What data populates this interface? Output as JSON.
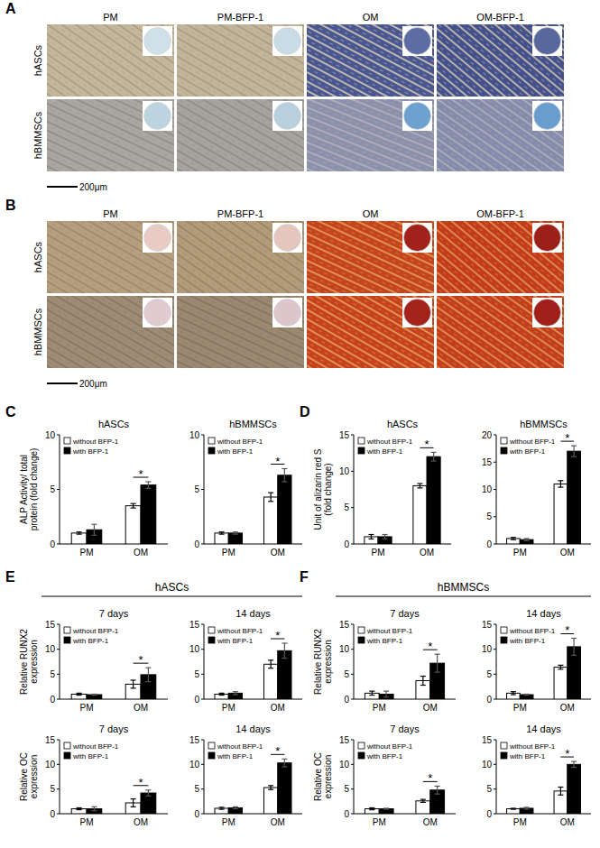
{
  "image_panels": [
    {
      "label": "A",
      "columns": [
        "PM",
        "PM-BFP-1",
        "OM",
        "OM-BFP-1"
      ],
      "rows": [
        "hASCs",
        "hBMMSCs"
      ],
      "scale_bar": "200μm"
    },
    {
      "label": "B",
      "columns": [
        "PM",
        "PM-BFP-1",
        "OM",
        "OM-BFP-1"
      ],
      "rows": [
        "hASCs",
        "hBMMSCs"
      ],
      "scale_bar": "200μm"
    }
  ],
  "chart_data": [
    {
      "type": "bar",
      "panel": "C",
      "title": "hASCs",
      "ylabel": "ALP Activity/ total protein (fold change)",
      "categories": [
        "PM",
        "OM"
      ],
      "series": [
        {
          "name": "without BFP-1",
          "color": "#ffffff",
          "values": [
            1.0,
            3.5
          ],
          "errors": [
            0.1,
            0.2
          ]
        },
        {
          "name": "with BFP-1",
          "color": "#000000",
          "values": [
            1.3,
            5.4
          ],
          "errors": [
            0.5,
            0.3
          ]
        }
      ],
      "ylim": [
        0,
        10
      ],
      "yticks": [
        0,
        5,
        10
      ],
      "legend": "upper left",
      "annotations": [
        {
          "text": "*",
          "category": "OM"
        }
      ]
    },
    {
      "type": "bar",
      "panel": "C",
      "title": "hBMMSCs",
      "categories": [
        "PM",
        "OM"
      ],
      "series": [
        {
          "name": "without BFP-1",
          "color": "#ffffff",
          "values": [
            1.0,
            4.3
          ],
          "errors": [
            0.1,
            0.4
          ]
        },
        {
          "name": "with BFP-1",
          "color": "#000000",
          "values": [
            1.0,
            6.3
          ],
          "errors": [
            0.1,
            0.6
          ]
        }
      ],
      "ylim": [
        0,
        10
      ],
      "yticks": [
        0,
        5,
        10
      ],
      "legend": "upper left",
      "annotations": [
        {
          "text": "*",
          "category": "OM"
        }
      ]
    },
    {
      "type": "bar",
      "panel": "D",
      "title": "hASCs",
      "ylabel": "Unit of alizarin red S (fold change)",
      "categories": [
        "PM",
        "OM"
      ],
      "series": [
        {
          "name": "without BFP-1",
          "color": "#ffffff",
          "values": [
            1.0,
            8.0
          ],
          "errors": [
            0.3,
            0.3
          ]
        },
        {
          "name": "with BFP-1",
          "color": "#000000",
          "values": [
            1.0,
            12.0
          ],
          "errors": [
            0.3,
            0.6
          ]
        }
      ],
      "ylim": [
        0,
        15
      ],
      "yticks": [
        0,
        5,
        10,
        15
      ],
      "legend": "upper left",
      "annotations": [
        {
          "text": "*",
          "category": "OM"
        }
      ]
    },
    {
      "type": "bar",
      "panel": "D",
      "title": "hBMMSCs",
      "categories": [
        "PM",
        "OM"
      ],
      "series": [
        {
          "name": "without BFP-1",
          "color": "#ffffff",
          "values": [
            1.0,
            11.0
          ],
          "errors": [
            0.2,
            0.6
          ]
        },
        {
          "name": "with BFP-1",
          "color": "#000000",
          "values": [
            0.8,
            17.0
          ],
          "errors": [
            0.2,
            1.0
          ]
        }
      ],
      "ylim": [
        0,
        20
      ],
      "yticks": [
        0,
        5,
        10,
        15,
        20
      ],
      "legend": "upper left",
      "annotations": [
        {
          "text": "*",
          "category": "OM"
        }
      ]
    },
    {
      "type": "bar",
      "panel": "E",
      "group_title": "hASCs",
      "title": "7 days",
      "ylabel": "Relative RUNX2 expression",
      "categories": [
        "PM",
        "OM"
      ],
      "series": [
        {
          "name": "without BFP-1",
          "color": "#ffffff",
          "values": [
            1.0,
            3.0
          ],
          "errors": [
            0.2,
            0.8
          ]
        },
        {
          "name": "with BFP-1",
          "color": "#000000",
          "values": [
            0.9,
            4.9
          ],
          "errors": [
            0.1,
            1.4
          ]
        }
      ],
      "ylim": [
        0,
        15
      ],
      "yticks": [
        0,
        5,
        10,
        15
      ],
      "legend": "upper left",
      "annotations": [
        {
          "text": "*",
          "category": "OM"
        }
      ]
    },
    {
      "type": "bar",
      "panel": "E",
      "group_title": "hASCs",
      "title": "14 days",
      "categories": [
        "PM",
        "OM"
      ],
      "series": [
        {
          "name": "without BFP-1",
          "color": "#ffffff",
          "values": [
            1.0,
            7.0
          ],
          "errors": [
            0.2,
            0.8
          ]
        },
        {
          "name": "with BFP-1",
          "color": "#000000",
          "values": [
            1.2,
            9.7
          ],
          "errors": [
            0.3,
            1.5
          ]
        }
      ],
      "ylim": [
        0,
        15
      ],
      "yticks": [
        0,
        5,
        10,
        15
      ],
      "legend": "upper left",
      "annotations": [
        {
          "text": "*",
          "category": "OM"
        }
      ]
    },
    {
      "type": "bar",
      "panel": "E",
      "group_title": "hASCs",
      "title": "7 days",
      "ylabel": "Relative OC expression",
      "categories": [
        "PM",
        "OM"
      ],
      "series": [
        {
          "name": "without BFP-1",
          "color": "#ffffff",
          "values": [
            1.0,
            2.2
          ],
          "errors": [
            0.2,
            0.8
          ]
        },
        {
          "name": "with BFP-1",
          "color": "#000000",
          "values": [
            1.0,
            4.2
          ],
          "errors": [
            0.4,
            0.6
          ]
        }
      ],
      "ylim": [
        0,
        15
      ],
      "yticks": [
        0,
        5,
        10,
        15
      ],
      "legend": "upper left",
      "annotations": [
        {
          "text": "*",
          "category": "OM"
        }
      ]
    },
    {
      "type": "bar",
      "panel": "E",
      "group_title": "hASCs",
      "title": "14 days",
      "categories": [
        "PM",
        "OM"
      ],
      "series": [
        {
          "name": "without BFP-1",
          "color": "#ffffff",
          "values": [
            1.1,
            5.3
          ],
          "errors": [
            0.2,
            0.4
          ]
        },
        {
          "name": "with BFP-1",
          "color": "#000000",
          "values": [
            1.2,
            10.3
          ],
          "errors": [
            0.2,
            0.8
          ]
        }
      ],
      "ylim": [
        0,
        15
      ],
      "yticks": [
        0,
        5,
        10,
        15
      ],
      "legend": "upper left",
      "annotations": [
        {
          "text": "*",
          "category": "OM"
        }
      ]
    },
    {
      "type": "bar",
      "panel": "F",
      "group_title": "hBMMSCs",
      "title": "7 days",
      "ylabel": "Relative RUNX2 expression",
      "categories": [
        "PM",
        "OM"
      ],
      "series": [
        {
          "name": "without BFP-1",
          "color": "#ffffff",
          "values": [
            1.2,
            3.7
          ],
          "errors": [
            0.4,
            0.9
          ]
        },
        {
          "name": "with BFP-1",
          "color": "#000000",
          "values": [
            1.0,
            7.2
          ],
          "errors": [
            0.6,
            1.8
          ]
        }
      ],
      "ylim": [
        0,
        15
      ],
      "yticks": [
        0,
        5,
        10,
        15
      ],
      "legend": "upper left",
      "annotations": [
        {
          "text": "*",
          "category": "OM"
        }
      ]
    },
    {
      "type": "bar",
      "panel": "F",
      "group_title": "hBMMSCs",
      "title": "14 days",
      "categories": [
        "PM",
        "OM"
      ],
      "series": [
        {
          "name": "without BFP-1",
          "color": "#ffffff",
          "values": [
            1.2,
            6.4
          ],
          "errors": [
            0.3,
            0.4
          ]
        },
        {
          "name": "with BFP-1",
          "color": "#000000",
          "values": [
            0.9,
            10.5
          ],
          "errors": [
            0.1,
            1.7
          ]
        }
      ],
      "ylim": [
        0,
        15
      ],
      "yticks": [
        0,
        5,
        10,
        15
      ],
      "legend": "upper left",
      "annotations": [
        {
          "text": "*",
          "category": "OM"
        }
      ]
    },
    {
      "type": "bar",
      "panel": "F",
      "group_title": "hBMMSCs",
      "title": "7 days",
      "ylabel": "Relative OC expression",
      "categories": [
        "PM",
        "OM"
      ],
      "series": [
        {
          "name": "without BFP-1",
          "color": "#ffffff",
          "values": [
            1.0,
            2.6
          ],
          "errors": [
            0.2,
            0.3
          ]
        },
        {
          "name": "with BFP-1",
          "color": "#000000",
          "values": [
            1.0,
            4.8
          ],
          "errors": [
            0.1,
            0.8
          ]
        }
      ],
      "ylim": [
        0,
        15
      ],
      "yticks": [
        0,
        5,
        10,
        15
      ],
      "legend": "upper left",
      "annotations": [
        {
          "text": "*",
          "category": "OM"
        }
      ]
    },
    {
      "type": "bar",
      "panel": "F",
      "group_title": "hBMMSCs",
      "title": "14 days",
      "categories": [
        "PM",
        "OM"
      ],
      "series": [
        {
          "name": "without BFP-1",
          "color": "#ffffff",
          "values": [
            1.0,
            4.6
          ],
          "errors": [
            0.1,
            0.8
          ]
        },
        {
          "name": "with BFP-1",
          "color": "#000000",
          "values": [
            1.1,
            10.0
          ],
          "errors": [
            0.2,
            0.6
          ]
        }
      ],
      "ylim": [
        0,
        15
      ],
      "yticks": [
        0,
        5,
        10,
        15
      ],
      "legend": "upper left",
      "annotations": [
        {
          "text": "*",
          "category": "OM"
        }
      ]
    }
  ]
}
